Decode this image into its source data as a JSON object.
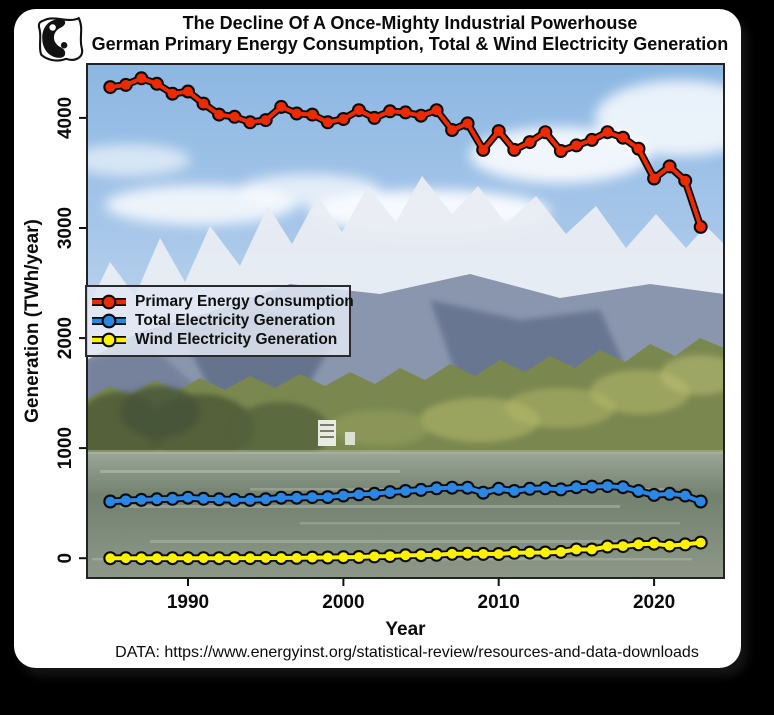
{
  "title": {
    "line1": "The Decline Of A Once-Mighty Industrial Powerhouse",
    "line2": "German Primary Energy Consumption, Total & Wind Electricity Generation"
  },
  "footer": {
    "text": "DATA: https://www.energyinst.org/statistical-review/resources-and-data-downloads"
  },
  "logo": {
    "icon": "yin-yang-logo"
  },
  "colors": {
    "primary_energy": "#ee2a02",
    "total_electricity": "#2b87e3",
    "wind_electricity": "#fff200",
    "outline": "#0a0a0a",
    "plot_border": "#222222"
  },
  "chart_data": {
    "type": "line",
    "xlabel": "Year",
    "ylabel": "Generation (TWh/year)",
    "xlim": [
      1983.5,
      2024.5
    ],
    "ylim": [
      -180,
      4490
    ],
    "x_ticks": [
      1990,
      2000,
      2010,
      2020
    ],
    "y_ticks": [
      0,
      1000,
      2000,
      3000,
      4000
    ],
    "grid": false,
    "legend_position": "middle-left",
    "x": [
      1985,
      1986,
      1987,
      1988,
      1989,
      1990,
      1991,
      1992,
      1993,
      1994,
      1995,
      1996,
      1997,
      1998,
      1999,
      2000,
      2001,
      2002,
      2003,
      2004,
      2005,
      2006,
      2007,
      2008,
      2009,
      2010,
      2011,
      2012,
      2013,
      2014,
      2015,
      2016,
      2017,
      2018,
      2019,
      2020,
      2021,
      2022,
      2023
    ],
    "series": [
      {
        "name": "Primary Energy Consumption",
        "color": "#ee2a02",
        "values": [
          4280,
          4300,
          4360,
          4310,
          4220,
          4240,
          4130,
          4030,
          4010,
          3960,
          3980,
          4100,
          4040,
          4030,
          3960,
          3990,
          4070,
          4000,
          4060,
          4050,
          4020,
          4070,
          3890,
          3950,
          3710,
          3880,
          3710,
          3780,
          3870,
          3700,
          3750,
          3800,
          3870,
          3820,
          3720,
          3450,
          3560,
          3430,
          3010
        ]
      },
      {
        "name": "Total Electricity Generation",
        "color": "#2b87e3",
        "values": [
          515,
          525,
          530,
          535,
          540,
          550,
          540,
          535,
          530,
          530,
          535,
          550,
          550,
          555,
          555,
          570,
          580,
          585,
          600,
          610,
          620,
          635,
          640,
          640,
          595,
          630,
          610,
          630,
          635,
          625,
          645,
          650,
          655,
          645,
          610,
          575,
          585,
          570,
          515
        ]
      },
      {
        "name": "Wind Electricity Generation",
        "color": "#fff200",
        "values": [
          0,
          0,
          0,
          0,
          0,
          0,
          0,
          0,
          1,
          1,
          2,
          2,
          3,
          5,
          6,
          9,
          11,
          16,
          19,
          26,
          27,
          31,
          40,
          41,
          39,
          38,
          49,
          51,
          52,
          57,
          79,
          79,
          106,
          110,
          126,
          132,
          114,
          125,
          142
        ]
      }
    ]
  }
}
